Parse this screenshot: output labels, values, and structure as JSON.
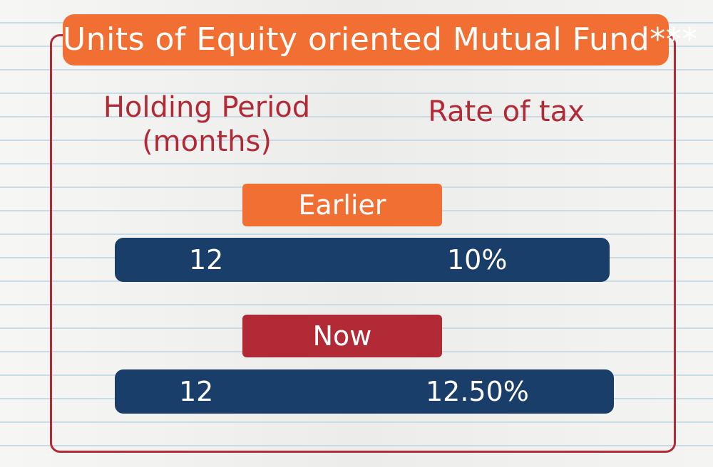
{
  "title": "Units of Equity oriented Mutual Fund***",
  "headers": {
    "holding_period": "Holding Period\n(months)",
    "rate_of_tax": "Rate of tax"
  },
  "rows": [
    {
      "label": "Earlier",
      "holding_period": "12",
      "rate": "10%"
    },
    {
      "label": "Now",
      "holding_period": "12",
      "rate": "12.50%"
    }
  ],
  "colors": {
    "orange": "#f26f33",
    "red": "#b22a36",
    "navy": "#1a3e6a"
  }
}
